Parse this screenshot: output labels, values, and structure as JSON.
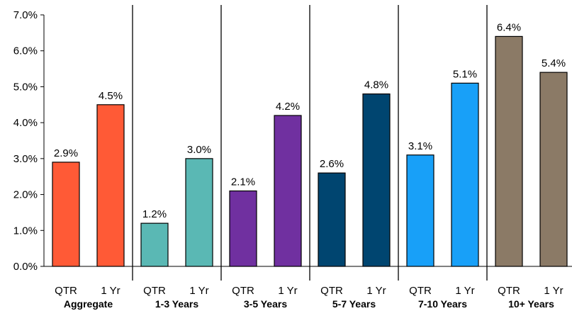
{
  "chart_data": {
    "type": "bar",
    "ylim": [
      0,
      7
    ],
    "yticks": [
      "0.0%",
      "1.0%",
      "2.0%",
      "3.0%",
      "4.0%",
      "5.0%",
      "6.0%",
      "7.0%"
    ],
    "grid": false,
    "legend": "none",
    "groups": [
      {
        "name": "Aggregate",
        "color": "#FF5A36",
        "bars": [
          {
            "label": "QTR",
            "value": 2.9,
            "text": "2.9%"
          },
          {
            "label": "1 Yr",
            "value": 4.5,
            "text": "4.5%"
          }
        ]
      },
      {
        "name": "1-3 Years",
        "color": "#5AB8B4",
        "bars": [
          {
            "label": "QTR",
            "value": 1.2,
            "text": "1.2%"
          },
          {
            "label": "1 Yr",
            "value": 3.0,
            "text": "3.0%"
          }
        ]
      },
      {
        "name": "3-5 Years",
        "color": "#7030A0",
        "bars": [
          {
            "label": "QTR",
            "value": 2.1,
            "text": "2.1%"
          },
          {
            "label": "1 Yr",
            "value": 4.2,
            "text": "4.2%"
          }
        ]
      },
      {
        "name": "5-7 Years",
        "color": "#004570",
        "bars": [
          {
            "label": "QTR",
            "value": 2.6,
            "text": "2.6%"
          },
          {
            "label": "1 Yr",
            "value": 4.8,
            "text": "4.8%"
          }
        ]
      },
      {
        "name": "7-10 Years",
        "color": "#18A0F8",
        "bars": [
          {
            "label": "QTR",
            "value": 3.1,
            "text": "3.1%"
          },
          {
            "label": "1 Yr",
            "value": 5.1,
            "text": "5.1%"
          }
        ]
      },
      {
        "name": "10+ Years",
        "color": "#8B7A66",
        "bars": [
          {
            "label": "QTR",
            "value": 6.4,
            "text": "6.4%"
          },
          {
            "label": "1 Yr",
            "value": 5.4,
            "text": "5.4%"
          }
        ]
      }
    ]
  }
}
